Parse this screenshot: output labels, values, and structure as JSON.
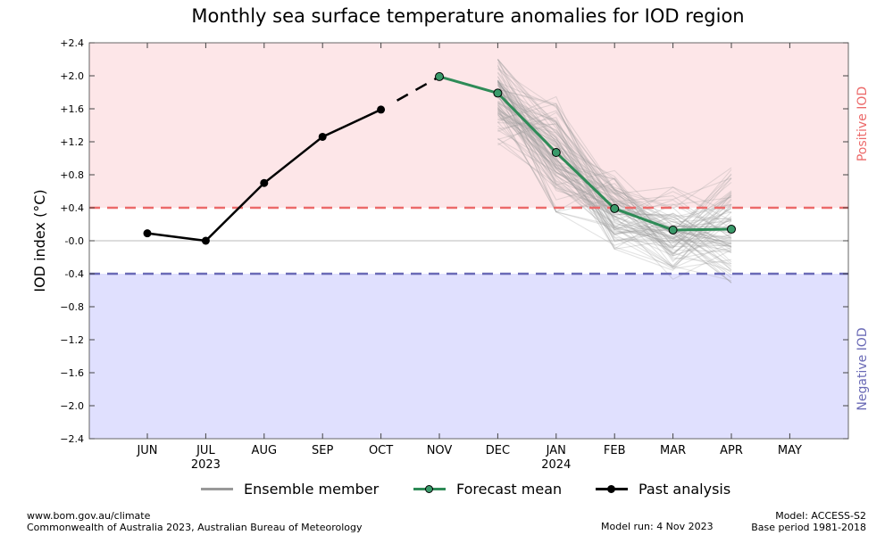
{
  "colors": {
    "positive_region": "#fde6e8",
    "negative_region": "#e0e0fe",
    "positive_line": "#ec6a6a",
    "negative_line": "#6a6ab6",
    "ensemble": "#999999",
    "forecast": "#2e8b57",
    "forecast_marker": "#3a9a6a",
    "past": "#000000"
  },
  "chart_data": {
    "type": "line",
    "title": "Monthly sea surface temperature anomalies for IOD region",
    "ylabel": "IOD index (°C)",
    "ylabel_main": "IOD index (",
    "ylabel_unit": "°C)",
    "ylim": [
      -2.4,
      2.4
    ],
    "yticks": [
      {
        "v": 2.4,
        "label": "+2.4"
      },
      {
        "v": 2.0,
        "label": "+2.0"
      },
      {
        "v": 1.6,
        "label": "+1.6"
      },
      {
        "v": 1.2,
        "label": "+1.2"
      },
      {
        "v": 0.8,
        "label": "+0.8"
      },
      {
        "v": 0.4,
        "label": "+0.4"
      },
      {
        "v": 0.0,
        "label": "-0.0"
      },
      {
        "v": -0.4,
        "label": "-0.4"
      },
      {
        "v": -0.8,
        "label": "−0.8"
      },
      {
        "v": -1.2,
        "label": "−1.2"
      },
      {
        "v": -1.6,
        "label": "−1.6"
      },
      {
        "v": -2.0,
        "label": "−2.0"
      },
      {
        "v": -2.4,
        "label": "−2.4"
      }
    ],
    "months": [
      "JUN",
      "JUL",
      "AUG",
      "SEP",
      "OCT",
      "NOV",
      "DEC",
      "JAN",
      "FEB",
      "MAR",
      "APR",
      "MAY"
    ],
    "year_labels": [
      {
        "month": "JUL",
        "label": "2023"
      },
      {
        "month": "JAN",
        "label": "2024"
      }
    ],
    "thresholds": {
      "positive": 0.4,
      "negative": -0.4
    },
    "region_labels": {
      "positive": "Positive IOD",
      "negative": "Negative IOD"
    },
    "past_analysis": {
      "name": "Past analysis",
      "x": [
        "JUN",
        "JUL",
        "AUG",
        "SEP",
        "OCT"
      ],
      "values": [
        0.09,
        0.0,
        0.7,
        1.26,
        1.59
      ]
    },
    "connector": {
      "x": [
        "OCT",
        "NOV"
      ],
      "values": [
        1.59,
        1.99
      ]
    },
    "forecast_mean": {
      "name": "Forecast mean",
      "x": [
        "NOV",
        "DEC",
        "JAN",
        "FEB",
        "MAR",
        "APR"
      ],
      "values": [
        1.99,
        1.79,
        1.07,
        0.39,
        0.13,
        0.14
      ]
    },
    "ensemble_member": {
      "name": "Ensemble member",
      "x": [
        "DEC",
        "JAN",
        "FEB",
        "MAR",
        "APR"
      ],
      "dec_range": [
        1.0,
        2.2
      ],
      "jan_range": [
        0.35,
        1.9
      ],
      "feb_range": [
        -0.1,
        1.0
      ],
      "mar_range": [
        -0.5,
        0.65
      ],
      "apr_range": [
        -0.6,
        0.9
      ]
    },
    "legend": [
      {
        "key": "ensemble",
        "label": "Ensemble member"
      },
      {
        "key": "forecast",
        "label": "Forecast mean"
      },
      {
        "key": "past",
        "label": "Past analysis"
      }
    ],
    "legend_position": "bottom"
  },
  "footer": {
    "website": "www.bom.gov.au/climate",
    "copyright": "Commonwealth of Australia 2023, Australian Bureau of Meteorology",
    "model_run": "Model run: 4 Nov 2023",
    "model": "Model: ACCESS-S2",
    "base_period": "Base period 1981-2018"
  }
}
